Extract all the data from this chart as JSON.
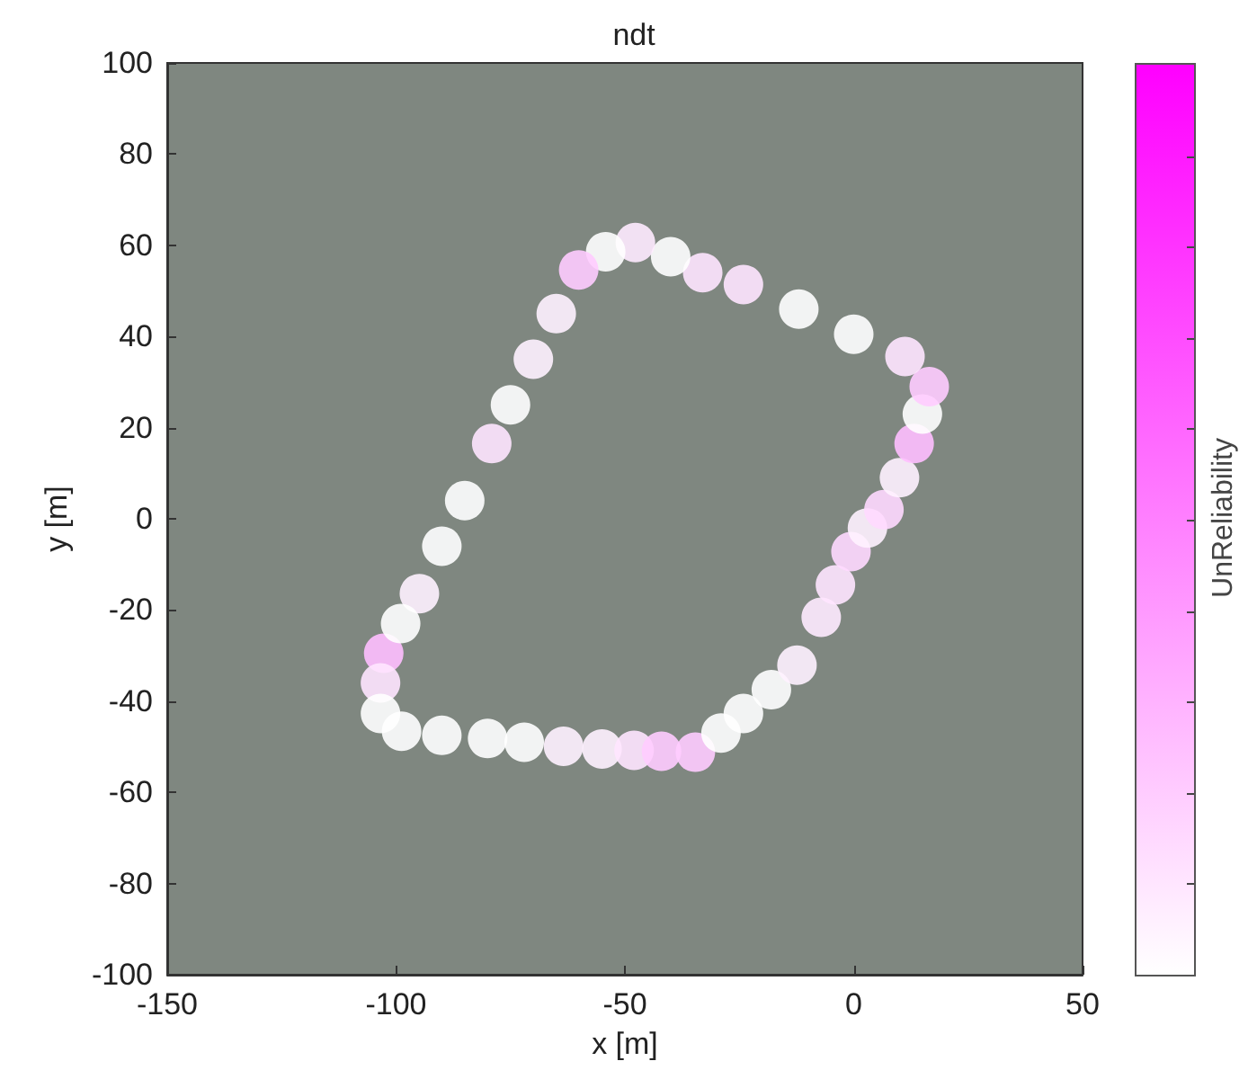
{
  "chart_data": {
    "type": "scatter",
    "title": "ndt",
    "xlabel": "x [m]",
    "ylabel": "y [m]",
    "clabel": "UnReliability",
    "xlim": [
      -150,
      50
    ],
    "xticks": [
      -150,
      -100,
      -50,
      0,
      50
    ],
    "ylim": [
      -100,
      100
    ],
    "yticks": [
      -100,
      -80,
      -60,
      -40,
      -20,
      0,
      20,
      40,
      60,
      80,
      100
    ],
    "grid": false,
    "marker": "circle",
    "x": [
      -102.7,
      -103.4,
      -103.4,
      -98.8,
      -90,
      -80,
      -72,
      -63.4,
      -55,
      -48,
      -42,
      -34.6,
      -29,
      -24.1,
      -18,
      -12.4,
      -7.1,
      -4,
      -0.6,
      3,
      6.6,
      10,
      13.2,
      15,
      16.5,
      11.2,
      0,
      -12,
      -24.1,
      -33,
      -40,
      -47.7,
      -54.2,
      -60.1,
      -65,
      -70,
      -75,
      -79.1,
      -85,
      -90,
      -94.9,
      -99
    ],
    "values": [
      -29.5,
      -36,
      -42.7,
      -46.6,
      -47.5,
      -48.2,
      -49,
      -49.9,
      -50.5,
      -50.8,
      -51,
      -51.2,
      -47,
      -42.7,
      -37.5,
      -32.1,
      -21.6,
      -14.5,
      -7.2,
      -2,
      2,
      9,
      16.5,
      23,
      29,
      35.6,
      40.5,
      46,
      51.4,
      54,
      57.5,
      60.6,
      58.6,
      54.6,
      45,
      35,
      25,
      16.5,
      4,
      -6,
      -16.4,
      -23
    ],
    "colors": [
      "#ffbfff",
      "#ffe6ff",
      "#ffffff",
      "#ffffff",
      "#ffffff",
      "#ffffff",
      "#ffffff",
      "#fff2ff",
      "#fff2ff",
      "#ffe6ff",
      "#ffccff",
      "#ffccff",
      "#ffffff",
      "#ffffff",
      "#ffffff",
      "#fff2ff",
      "#ffebff",
      "#ffe6ff",
      "#ffd9ff",
      "#fff2ff",
      "#ffd9ff",
      "#fff2ff",
      "#ffbfff",
      "#ffffff",
      "#ffccff",
      "#ffe6ff",
      "#ffffff",
      "#ffffff",
      "#ffe6ff",
      "#ffe6ff",
      "#ffffff",
      "#ffebff",
      "#ffffff",
      "#ffccff",
      "#fff2ff",
      "#fff2ff",
      "#ffffff",
      "#ffe6ff",
      "#ffffff",
      "#ffffff",
      "#fff2ff",
      "#ffffff"
    ]
  }
}
